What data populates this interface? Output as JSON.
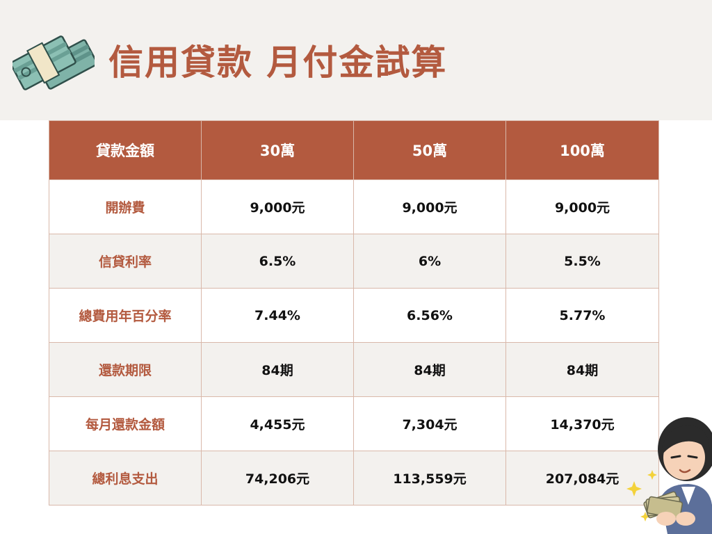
{
  "header": {
    "title": "信用貸款 月付金試算",
    "icon": "money-stack-icon"
  },
  "table": {
    "columns": [
      "貸款金額",
      "30萬",
      "50萬",
      "100萬"
    ],
    "rows": [
      {
        "label": "開辦費",
        "values": [
          "9,000元",
          "9,000元",
          "9,000元"
        ]
      },
      {
        "label": "信貸利率",
        "values": [
          "6.5%",
          "6%",
          "5.5%"
        ]
      },
      {
        "label": "總費用年百分率",
        "values": [
          "7.44%",
          "6.56%",
          "5.77%"
        ]
      },
      {
        "label": "還款期限",
        "values": [
          "84期",
          "84期",
          "84期"
        ]
      },
      {
        "label": "每月還款金額",
        "values": [
          "4,455元",
          "7,304元",
          "14,370元"
        ]
      },
      {
        "label": "總利息支出",
        "values": [
          "74,206元",
          "113,559元",
          "207,084元"
        ]
      }
    ]
  },
  "colors": {
    "accent": "#b35a3f",
    "header_bg": "#f3f1ee",
    "row_alt": "#f3f1ee",
    "border": "#d9b8aa"
  },
  "illustration": "woman-counting-money-icon"
}
